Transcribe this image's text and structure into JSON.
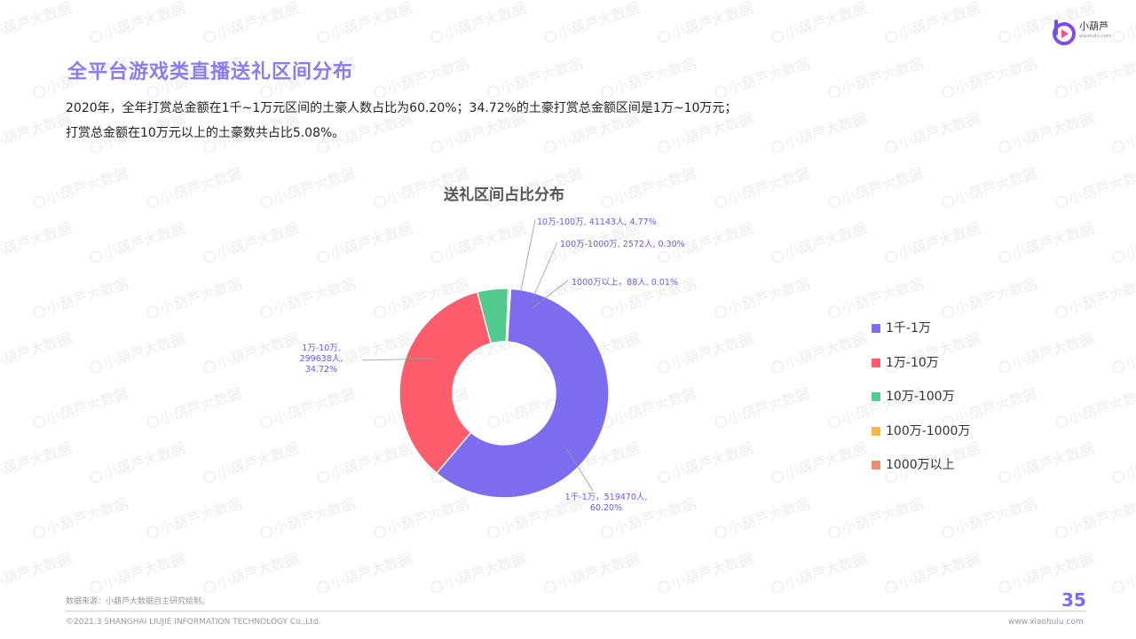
{
  "brand": {
    "name": "小葫芦",
    "domain": "xiaohulu.com",
    "watermark_text": "小葫芦大数据"
  },
  "page_title": "全平台游戏类直播送礼区间分布",
  "summary_lines": [
    "2020年，全年打赏总金额在1千~1万元区间的土豪人数占比为60.20%；34.72%的土豪打赏总金额区间是1万~10万元；",
    "打赏总金额在10万元以上的土豪数共占比5.08%。"
  ],
  "chart_data": {
    "type": "pie",
    "variant": "donut",
    "title": "送礼区间占比分布",
    "slices": [
      {
        "name": "1千-1万",
        "count": 519470,
        "percent": 60.2,
        "color": "#7B6CF0",
        "label_lines": [
          "1千-1万，519470人,",
          "60.20%"
        ]
      },
      {
        "name": "1万-10万",
        "count": 299638,
        "percent": 34.72,
        "color": "#FF5C6C",
        "label_lines": [
          "1万-10万,",
          "299638人,",
          "34.72%"
        ]
      },
      {
        "name": "10万-100万",
        "count": 41143,
        "percent": 4.77,
        "color": "#52C98E",
        "label_lines": [
          "10万-100万, 41143人, 4.77%"
        ]
      },
      {
        "name": "100万-1000万",
        "count": 2572,
        "percent": 0.3,
        "color": "#F5B84A",
        "label_lines": [
          "100万-1000万, 2572人, 0.30%"
        ]
      },
      {
        "name": "1000万以上",
        "count": 88,
        "percent": 0.01,
        "color": "#EF8A72",
        "label_lines": [
          "1000万以上，88人, 0.01%"
        ]
      }
    ],
    "label_color": "#6A5AE0",
    "legend_position": "right"
  },
  "footer": {
    "source": "数据来源：小葫芦大数据自主研究绘制。",
    "copyright": "©2021.3 SHANGHAI LIUJIE INFORMATION  TECHNOLOGY Co.,Ltd.",
    "page_number": "35",
    "url": "www.xiaohulu.com"
  }
}
